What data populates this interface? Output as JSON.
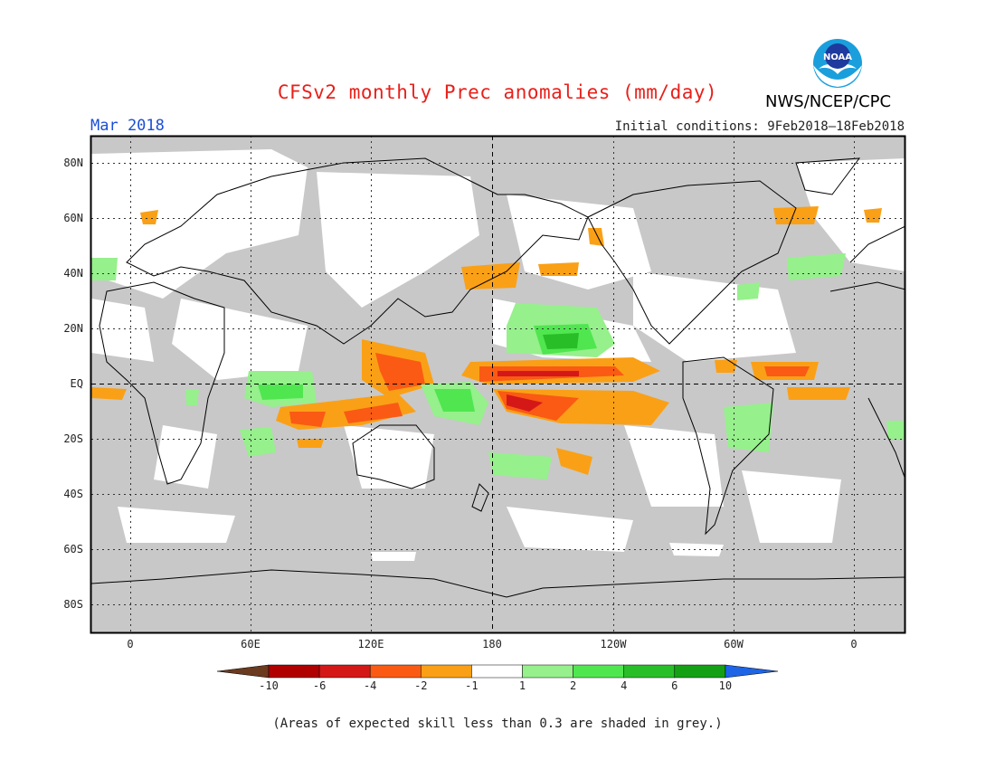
{
  "header": {
    "title": "CFSv2 monthly Prec anomalies (mm/day)",
    "agency": "NWS/NCEP/CPC",
    "logo_text": "NOAA",
    "month": "Mar 2018",
    "initial_conditions": "Initial conditions: 9Feb2018–18Feb2018"
  },
  "map": {
    "projection": "cylindrical equidistant",
    "center_longitude": "180",
    "grid": true,
    "lat_labels": [
      "80N",
      "60N",
      "40N",
      "20N",
      "EQ",
      "20S",
      "40S",
      "60S",
      "80S"
    ],
    "lon_labels": [
      "0",
      "60E",
      "120E",
      "180",
      "120W",
      "60W",
      "0"
    ],
    "skill_mask_color": "#c8c8c8",
    "anomaly_features": [
      {
        "region": "central equatorial Pacific north of equator",
        "sign": "dry",
        "category": "-4 to -2"
      },
      {
        "region": "central equatorial Pacific south of equator",
        "sign": "dry",
        "category": "-4 to -2"
      },
      {
        "region": "western Pacific / Philippines",
        "sign": "dry",
        "category": "-4 to -2"
      },
      {
        "region": "eastern Indian Ocean / Indonesia",
        "sign": "dry",
        "category": "-4 to -2"
      },
      {
        "region": "subtropical north-central Pacific",
        "sign": "wet",
        "category": "1 to 4"
      },
      {
        "region": "western Pacific south of equator",
        "sign": "wet",
        "category": "1 to 4"
      },
      {
        "region": "tropical Indian Ocean",
        "sign": "wet",
        "category": "1 to 4"
      },
      {
        "region": "equatorial Atlantic",
        "sign": "dry",
        "category": "-4 to -1"
      },
      {
        "region": "South America / South Atlantic",
        "sign": "wet",
        "category": "1 to 2"
      }
    ]
  },
  "colorbar": {
    "labels": [
      "-10",
      "-6",
      "-4",
      "-2",
      "-1",
      "1",
      "2",
      "4",
      "6",
      "10"
    ],
    "colors": [
      "#6b3a1f",
      "#b00000",
      "#d41818",
      "#fa5a14",
      "#faa016",
      "#ffffff",
      "#96f08c",
      "#50e650",
      "#28be28",
      "#14a014",
      "#1e64e6"
    ]
  },
  "footnote": "(Areas of expected skill less than 0.3 are shaded in grey.)"
}
